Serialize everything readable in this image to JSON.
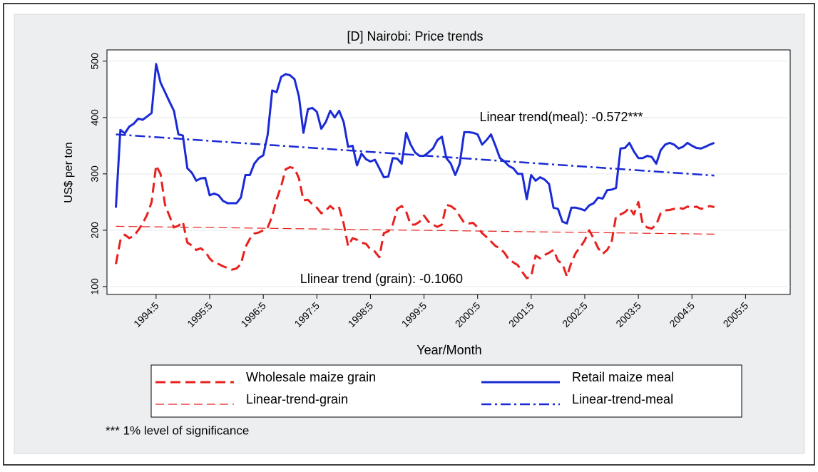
{
  "chart_data": {
    "type": "line",
    "title": "[D] Nairobi: Price trends",
    "xlabel": "Year/Month",
    "ylabel": "US$ per ton",
    "annotations": [
      "Linear trend(meal): -0.572***",
      "Llinear trend (grain): -0.1060"
    ],
    "footnote": "*** 1% level of significance",
    "xlim": [
      401,
      554
    ],
    "ylim": [
      86,
      520
    ],
    "yticks": [
      100,
      200,
      300,
      400,
      500
    ],
    "xticks": [
      {
        "value": 412,
        "label": "1994:5"
      },
      {
        "value": 424,
        "label": "1995:5"
      },
      {
        "value": 436,
        "label": "1996:5"
      },
      {
        "value": 448,
        "label": "1997:5"
      },
      {
        "value": 460,
        "label": "1998:5"
      },
      {
        "value": 472,
        "label": "1999:5"
      },
      {
        "value": 484,
        "label": "2000:5"
      },
      {
        "value": 496,
        "label": "2001:5"
      },
      {
        "value": 508,
        "label": "2002:5"
      },
      {
        "value": 520,
        "label": "2003:5"
      },
      {
        "value": 532,
        "label": "2004:5"
      },
      {
        "value": 544,
        "label": "2005:5"
      }
    ],
    "grid": true,
    "series": [
      {
        "name": "Wholesale maize grain",
        "color": "#e8201e",
        "style": "dashed",
        "x": [
          403,
          404,
          405,
          406,
          407,
          408,
          409,
          410,
          411,
          412,
          413,
          414,
          415,
          416,
          417,
          418,
          419,
          420,
          421,
          422,
          423,
          424,
          425,
          426,
          427,
          428,
          429,
          430,
          431,
          432,
          433,
          434,
          435,
          436,
          437,
          438,
          439,
          440,
          441,
          442,
          443,
          444,
          445,
          446,
          447,
          448,
          449,
          450,
          451,
          452,
          453,
          454,
          455,
          456,
          457,
          458,
          459,
          460,
          461,
          462,
          463,
          464,
          465,
          466,
          467,
          468,
          469,
          470,
          471,
          472,
          473,
          474,
          475,
          476,
          477,
          478,
          479,
          480,
          481,
          482,
          483,
          484,
          485,
          486,
          487,
          488,
          489,
          490,
          491,
          492,
          493,
          494,
          495,
          496,
          497,
          498,
          499,
          500,
          501,
          502,
          503,
          504,
          505,
          506,
          507,
          508,
          509,
          510,
          511,
          512,
          513,
          514,
          515,
          516,
          517,
          518,
          519,
          520,
          521,
          522,
          523,
          524,
          525,
          526,
          527,
          528,
          529,
          530,
          531,
          532,
          533,
          534,
          535,
          536,
          537
        ],
        "values": [
          140,
          182,
          192,
          186,
          190,
          200,
          212,
          228,
          250,
          315,
          300,
          245,
          225,
          205,
          208,
          215,
          178,
          173,
          165,
          168,
          162,
          150,
          142,
          140,
          136,
          133,
          130,
          132,
          140,
          170,
          185,
          194,
          196,
          200,
          205,
          225,
          255,
          278,
          308,
          312,
          310,
          292,
          253,
          254,
          246,
          240,
          230,
          235,
          243,
          236,
          240,
          212,
          172,
          186,
          183,
          178,
          176,
          166,
          162,
          152,
          195,
          198,
          210,
          238,
          243,
          233,
          210,
          210,
          215,
          226,
          215,
          210,
          206,
          210,
          245,
          243,
          237,
          225,
          213,
          212,
          213,
          205,
          195,
          188,
          180,
          172,
          168,
          160,
          148,
          143,
          138,
          126,
          115,
          118,
          155,
          150,
          156,
          160,
          165,
          146,
          140,
          118,
          143,
          160,
          170,
          182,
          200,
          185,
          168,
          158,
          165,
          178,
          225,
          228,
          232,
          240,
          228,
          250,
          210,
          205,
          203,
          210,
          230,
          235,
          236,
          238,
          240,
          238,
          242,
          240,
          242,
          238,
          240,
          243,
          241
        ]
      },
      {
        "name": "Retail maize meal",
        "color": "#1a2bd6",
        "style": "solid",
        "x": [
          403,
          404,
          405,
          406,
          407,
          408,
          409,
          410,
          411,
          412,
          413,
          414,
          415,
          416,
          417,
          418,
          419,
          420,
          421,
          422,
          423,
          424,
          425,
          426,
          427,
          428,
          429,
          430,
          431,
          432,
          433,
          434,
          435,
          436,
          437,
          438,
          439,
          440,
          441,
          442,
          443,
          444,
          445,
          446,
          447,
          448,
          449,
          450,
          451,
          452,
          453,
          454,
          455,
          456,
          457,
          458,
          459,
          460,
          461,
          462,
          463,
          464,
          465,
          466,
          467,
          468,
          469,
          470,
          471,
          472,
          473,
          474,
          475,
          476,
          477,
          478,
          479,
          480,
          481,
          482,
          483,
          484,
          485,
          486,
          487,
          488,
          489,
          490,
          491,
          492,
          493,
          494,
          495,
          496,
          497,
          498,
          499,
          500,
          501,
          502,
          503,
          504,
          505,
          506,
          507,
          508,
          509,
          510,
          511,
          512,
          513,
          514,
          515,
          516,
          517,
          518,
          519,
          520,
          521,
          522,
          523,
          524,
          525,
          526,
          527,
          528,
          529,
          530,
          531,
          532,
          533,
          534,
          535,
          536,
          537
        ],
        "values": [
          240,
          378,
          372,
          384,
          389,
          398,
          396,
          402,
          408,
          495,
          462,
          445,
          428,
          412,
          370,
          368,
          310,
          302,
          288,
          292,
          293,
          262,
          265,
          262,
          252,
          248,
          248,
          248,
          258,
          298,
          298,
          318,
          328,
          333,
          370,
          448,
          445,
          472,
          477,
          475,
          468,
          437,
          373,
          415,
          417,
          410,
          380,
          392,
          412,
          400,
          412,
          392,
          348,
          350,
          315,
          336,
          326,
          322,
          325,
          310,
          294,
          295,
          328,
          327,
          318,
          373,
          352,
          338,
          332,
          332,
          338,
          345,
          360,
          366,
          328,
          318,
          298,
          318,
          374,
          374,
          373,
          370,
          352,
          360,
          370,
          350,
          328,
          322,
          314,
          310,
          300,
          300,
          255,
          298,
          288,
          294,
          290,
          282,
          240,
          238,
          215,
          212,
          240,
          240,
          238,
          235,
          244,
          248,
          258,
          256,
          271,
          272,
          275,
          345,
          346,
          355,
          340,
          328,
          328,
          332,
          330,
          318,
          342,
          352,
          355,
          352,
          345,
          348,
          355,
          350,
          346,
          345,
          348,
          352,
          355
        ]
      },
      {
        "name": "Linear-trend-grain",
        "color": "#e8201e",
        "style": "thin-dashed",
        "x": [
          403,
          537
        ],
        "values": [
          207,
          193
        ]
      },
      {
        "name": "Linear-trend-meal",
        "color": "#1a2bd6",
        "style": "dash-dot",
        "x": [
          403,
          537
        ],
        "values": [
          370,
          297
        ]
      }
    ]
  }
}
